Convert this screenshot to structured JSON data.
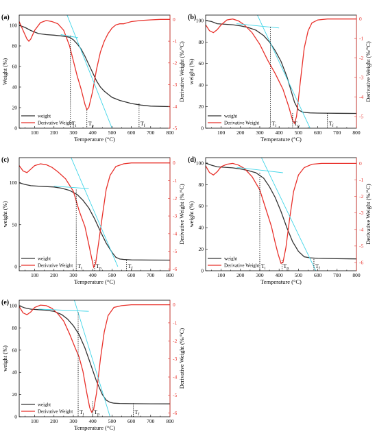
{
  "colors": {
    "weight": "#333333",
    "derivative": "#e8302a",
    "tangent": "#3fd5e8",
    "axis": "#000000",
    "right_axis": "#e8302a"
  },
  "chart_data": [
    {
      "type": "line",
      "panel_label": "(a)",
      "xlabel": "Temperature (°C)",
      "ylabel": "Weight  (%)",
      "y2label": "Derivative Weight (%/°C)",
      "xlim": [
        20,
        800
      ],
      "ylim": [
        0,
        110
      ],
      "y2lim": [
        -5,
        0.2
      ],
      "xticks": [
        100,
        200,
        300,
        400,
        500,
        600,
        700,
        800
      ],
      "yticks": [
        0,
        20,
        40,
        60,
        80,
        100
      ],
      "y2ticks": [
        0,
        -1,
        -2,
        -3,
        -4,
        -5
      ],
      "legend": {
        "position": "bottom-left",
        "entries": [
          "weight",
          "Derivative Weight"
        ]
      },
      "series": [
        {
          "name": "weight",
          "axis": "left",
          "x": [
            20,
            50,
            80,
            120,
            160,
            200,
            250,
            280,
            300,
            320,
            340,
            360,
            380,
            400,
            420,
            440,
            460,
            480,
            500,
            540,
            600,
            650,
            700,
            750,
            800
          ],
          "y": [
            100,
            98,
            95,
            92,
            91,
            90.5,
            89.5,
            88.5,
            86,
            82,
            77,
            70,
            62,
            54,
            46,
            40,
            36,
            33,
            30,
            27,
            24,
            22.5,
            21.5,
            21.2,
            21
          ]
        },
        {
          "name": "Derivative Weight",
          "axis": "right",
          "x": [
            20,
            40,
            60,
            70,
            80,
            100,
            130,
            160,
            190,
            220,
            250,
            280,
            300,
            320,
            340,
            360,
            370,
            380,
            400,
            420,
            440,
            460,
            480,
            500,
            520,
            540,
            560,
            600,
            650,
            700,
            750,
            800
          ],
          "y": [
            -0.1,
            -0.5,
            -0.9,
            -1.0,
            -0.9,
            -0.5,
            -0.15,
            -0.05,
            -0.1,
            -0.2,
            -0.5,
            -1.2,
            -1.9,
            -2.6,
            -3.2,
            -3.9,
            -4.15,
            -4.05,
            -3.3,
            -2.3,
            -1.5,
            -1.0,
            -0.65,
            -0.4,
            -0.25,
            -0.2,
            -0.2,
            -0.1,
            -0.05,
            -0.02,
            0,
            0
          ]
        }
      ],
      "tangents": [
        {
          "points": [
            [
              235,
              91
            ],
            [
              325,
              88
            ]
          ]
        },
        {
          "points": [
            [
              255,
              116
            ],
            [
              500,
              0
            ]
          ]
        }
      ],
      "markers": [
        {
          "label": "Ti",
          "x": 285,
          "y_top": 90
        },
        {
          "label": "Tp",
          "x": 370,
          "y_top": 18
        },
        {
          "label": "Tf",
          "x": 640,
          "y_top": 24
        }
      ]
    },
    {
      "type": "line",
      "panel_label": "(b)",
      "xlabel": "Temperature (°C)",
      "ylabel": "weight (%)",
      "y2label": "Derivative Weight (%/°C)",
      "xlim": [
        20,
        800
      ],
      "ylim": [
        0,
        105
      ],
      "y2lim": [
        -5.6,
        0.2
      ],
      "xticks": [
        100,
        200,
        300,
        400,
        500,
        600,
        700,
        800
      ],
      "yticks": [
        0,
        20,
        40,
        60,
        80,
        100
      ],
      "y2ticks": [
        0,
        -1,
        -2,
        -3,
        -4,
        -5
      ],
      "legend": {
        "position": "bottom-left",
        "entries": [
          "weight",
          "Derivative Weight"
        ]
      },
      "series": [
        {
          "name": "weight",
          "axis": "left",
          "x": [
            20,
            50,
            80,
            120,
            160,
            200,
            240,
            280,
            320,
            350,
            380,
            410,
            440,
            460,
            480,
            500,
            520,
            540,
            560,
            600,
            700,
            800
          ],
          "y": [
            100,
            99,
            97,
            96.5,
            96,
            95,
            93.5,
            91,
            86,
            80,
            72,
            62,
            48,
            36,
            24,
            17,
            15,
            14.5,
            14.2,
            14,
            13.8,
            13.7
          ]
        },
        {
          "name": "Derivative Weight",
          "axis": "right",
          "x": [
            20,
            40,
            60,
            80,
            100,
            130,
            160,
            190,
            220,
            260,
            300,
            340,
            380,
            420,
            450,
            470,
            480,
            490,
            510,
            530,
            550,
            570,
            600,
            650,
            700,
            800
          ],
          "y": [
            -0.3,
            -0.6,
            -0.7,
            -0.55,
            -0.3,
            -0.05,
            0,
            -0.1,
            -0.3,
            -0.7,
            -1.3,
            -2.1,
            -2.8,
            -3.6,
            -4.5,
            -5.2,
            -5.35,
            -5.0,
            -3.2,
            -1.5,
            -0.6,
            -0.2,
            -0.05,
            0,
            0,
            0
          ]
        }
      ],
      "tangents": [
        {
          "points": [
            [
              180,
              97
            ],
            [
              400,
              93
            ]
          ]
        },
        {
          "points": [
            [
              280,
              108
            ],
            [
              560,
              0
            ]
          ]
        }
      ],
      "markers": [
        {
          "label": "Ti",
          "x": 355,
          "y_top": 94
        },
        {
          "label": "Tp",
          "x": 470,
          "y_top": 14
        },
        {
          "label": "Tf",
          "x": 650,
          "y_top": 14
        }
      ]
    },
    {
      "type": "line",
      "panel_label": "(c)",
      "xlabel": "Temperature (°C)",
      "ylabel": "weight (%)",
      "y2label": "Derivative Weight (%/°C)",
      "xlim": [
        20,
        800
      ],
      "ylim": [
        -5,
        130
      ],
      "y2lim": [
        -6.1,
        0.3
      ],
      "xticks": [
        100,
        200,
        300,
        400,
        500,
        600,
        700,
        800
      ],
      "yticks": [
        0,
        50,
        100
      ],
      "y2ticks": [
        0,
        -1,
        -2,
        -3,
        -4,
        -5,
        -6
      ],
      "legend": {
        "position": "bottom-left",
        "entries": [
          "weight",
          "Derivative Weight"
        ]
      },
      "series": [
        {
          "name": "weight",
          "axis": "left",
          "x": [
            20,
            50,
            80,
            120,
            160,
            200,
            240,
            280,
            320,
            350,
            380,
            410,
            440,
            470,
            500,
            520,
            540,
            560,
            600,
            700,
            800
          ],
          "y": [
            100,
            98,
            96.5,
            96,
            95.5,
            95,
            93.5,
            91,
            86,
            79,
            70,
            57,
            42,
            28,
            17,
            11,
            9,
            8.5,
            8,
            7.8,
            7.7
          ]
        },
        {
          "name": "Derivative Weight",
          "axis": "right",
          "x": [
            20,
            40,
            60,
            80,
            100,
            130,
            160,
            190,
            220,
            260,
            300,
            330,
            360,
            380,
            395,
            405,
            415,
            430,
            450,
            470,
            490,
            520,
            560,
            600,
            700,
            800
          ],
          "y": [
            -0.15,
            -0.45,
            -0.55,
            -0.35,
            -0.15,
            -0.05,
            -0.1,
            -0.25,
            -0.5,
            -0.9,
            -1.6,
            -2.7,
            -3.6,
            -4.6,
            -5.4,
            -5.9,
            -5.7,
            -4.6,
            -3.0,
            -1.5,
            -0.7,
            -0.2,
            -0.05,
            0,
            0,
            0
          ]
        }
      ],
      "tangents": [
        {
          "points": [
            [
              200,
              96
            ],
            [
              380,
              93
            ]
          ]
        },
        {
          "points": [
            [
              270,
              140
            ],
            [
              530,
              0
            ]
          ]
        }
      ],
      "markers": [
        {
          "label": "Ti",
          "x": 315,
          "y_top": 92
        },
        {
          "label": "Tp",
          "x": 410,
          "y_top": 8
        },
        {
          "label": "Tf",
          "x": 575,
          "y_top": 8
        }
      ]
    },
    {
      "type": "line",
      "panel_label": "(d)",
      "xlabel": "Temperature (°C)",
      "ylabel": "weight (%)",
      "y2label": "Derivative Weight (%/°C)",
      "xlim": [
        20,
        800
      ],
      "ylim": [
        0,
        105
      ],
      "y2lim": [
        -6.5,
        0.35
      ],
      "xticks": [
        100,
        200,
        300,
        400,
        500,
        600,
        700,
        800
      ],
      "yticks": [
        0,
        20,
        40,
        60,
        80,
        100
      ],
      "y2ticks": [
        0,
        -1,
        -2,
        -3,
        -4,
        -5,
        -6
      ],
      "legend": {
        "position": "bottom-left",
        "entries": [
          "weight",
          "Derivative Weight"
        ]
      },
      "series": [
        {
          "name": "weight",
          "axis": "left",
          "x": [
            20,
            50,
            80,
            120,
            160,
            200,
            240,
            280,
            320,
            350,
            380,
            410,
            440,
            470,
            500,
            530,
            560,
            600,
            700,
            800
          ],
          "y": [
            100,
            98,
            96.5,
            96,
            95.5,
            94.5,
            93,
            91,
            86,
            78,
            68,
            55,
            40,
            27,
            18,
            13,
            12,
            11.5,
            11.2,
            11
          ]
        },
        {
          "name": "Derivative Weight",
          "axis": "right",
          "x": [
            20,
            40,
            60,
            80,
            100,
            130,
            160,
            190,
            220,
            260,
            300,
            330,
            360,
            380,
            395,
            410,
            420,
            435,
            455,
            475,
            500,
            530,
            570,
            620,
            700,
            800
          ],
          "y": [
            -0.15,
            -0.55,
            -0.7,
            -0.5,
            -0.2,
            -0.05,
            0,
            -0.1,
            -0.3,
            -0.8,
            -1.6,
            -2.7,
            -3.8,
            -4.8,
            -5.5,
            -6.05,
            -6.0,
            -5.1,
            -3.3,
            -1.7,
            -0.7,
            -0.25,
            -0.05,
            0,
            0,
            0
          ]
        }
      ],
      "tangents": [
        {
          "points": [
            [
              180,
              96
            ],
            [
              420,
              91
            ]
          ]
        },
        {
          "points": [
            [
              290,
              112
            ],
            [
              590,
              0
            ]
          ]
        }
      ],
      "markers": [
        {
          "label": "Ti",
          "x": 300,
          "y_top": 91
        },
        {
          "label": "Tp",
          "x": 415,
          "y_top": 10
        },
        {
          "label": "Tf",
          "x": 580,
          "y_top": 11
        }
      ]
    },
    {
      "type": "line",
      "panel_label": "(e)",
      "xlabel": "Temperature (°C)",
      "ylabel": "weight (%)",
      "y2label": "Derivative Weight (%/°C)",
      "xlim": [
        20,
        800
      ],
      "ylim": [
        0,
        105
      ],
      "y2lim": [
        -6.2,
        0.25
      ],
      "xticks": [
        100,
        200,
        300,
        400,
        500,
        600,
        700,
        800
      ],
      "yticks": [
        0,
        20,
        40,
        60,
        80,
        100
      ],
      "y2ticks": [
        0,
        -1,
        -2,
        -3,
        -4,
        -5,
        -6
      ],
      "legend": {
        "position": "bottom-left",
        "entries": [
          "weight",
          "Derivative Weight"
        ]
      },
      "series": [
        {
          "name": "weight",
          "axis": "left",
          "x": [
            20,
            50,
            80,
            120,
            160,
            200,
            240,
            270,
            300,
            330,
            360,
            390,
            420,
            450,
            470,
            490,
            510,
            540,
            600,
            700,
            800
          ],
          "y": [
            100,
            98,
            97,
            96.5,
            96,
            95,
            92,
            88,
            82,
            74,
            62,
            47,
            32,
            20,
            15,
            13,
            12.2,
            12,
            11.8,
            11.7,
            11.6
          ]
        },
        {
          "name": "Derivative Weight",
          "axis": "right",
          "x": [
            20,
            40,
            60,
            80,
            100,
            130,
            160,
            190,
            220,
            250,
            280,
            310,
            330,
            350,
            370,
            385,
            395,
            405,
            420,
            440,
            460,
            480,
            510,
            550,
            600,
            700,
            800
          ],
          "y": [
            -0.1,
            -0.45,
            -0.55,
            -0.4,
            -0.15,
            -0.02,
            -0.05,
            -0.2,
            -0.5,
            -0.9,
            -1.6,
            -2.4,
            -2.9,
            -3.7,
            -4.9,
            -5.7,
            -5.95,
            -5.8,
            -4.9,
            -3.0,
            -1.5,
            -0.6,
            -0.15,
            -0.05,
            0,
            0,
            0
          ]
        }
      ],
      "tangents": [
        {
          "points": [
            [
              120,
              97
            ],
            [
              380,
              95
            ]
          ]
        },
        {
          "points": [
            [
              300,
              108
            ],
            [
              490,
              0
            ]
          ]
        }
      ],
      "markers": [
        {
          "label": "Ti",
          "x": 325,
          "y_top": 94
        },
        {
          "label": "Tp",
          "x": 400,
          "y_top": 14
        },
        {
          "label": "Tf",
          "x": 610,
          "y_top": 12
        }
      ]
    }
  ]
}
